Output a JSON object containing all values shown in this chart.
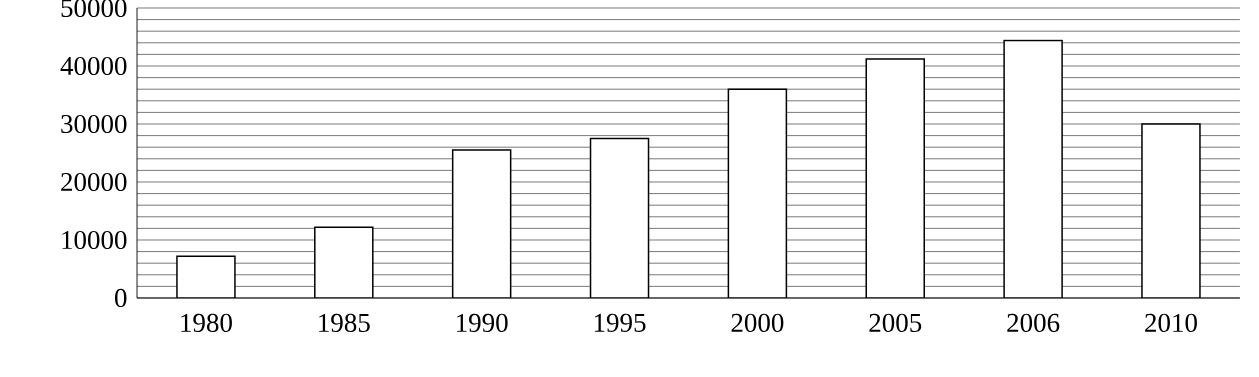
{
  "chart_data": {
    "type": "bar",
    "categories": [
      "1980",
      "1985",
      "1990",
      "1995",
      "2000",
      "2005",
      "2006",
      "2010"
    ],
    "values": [
      7200,
      12200,
      25500,
      27500,
      36000,
      41200,
      44400,
      30000
    ],
    "color": "#ffffff",
    "ylim": [
      0,
      50000
    ],
    "yticks": [
      0,
      10000,
      20000,
      30000,
      40000,
      50000
    ],
    "grid": "y"
  }
}
